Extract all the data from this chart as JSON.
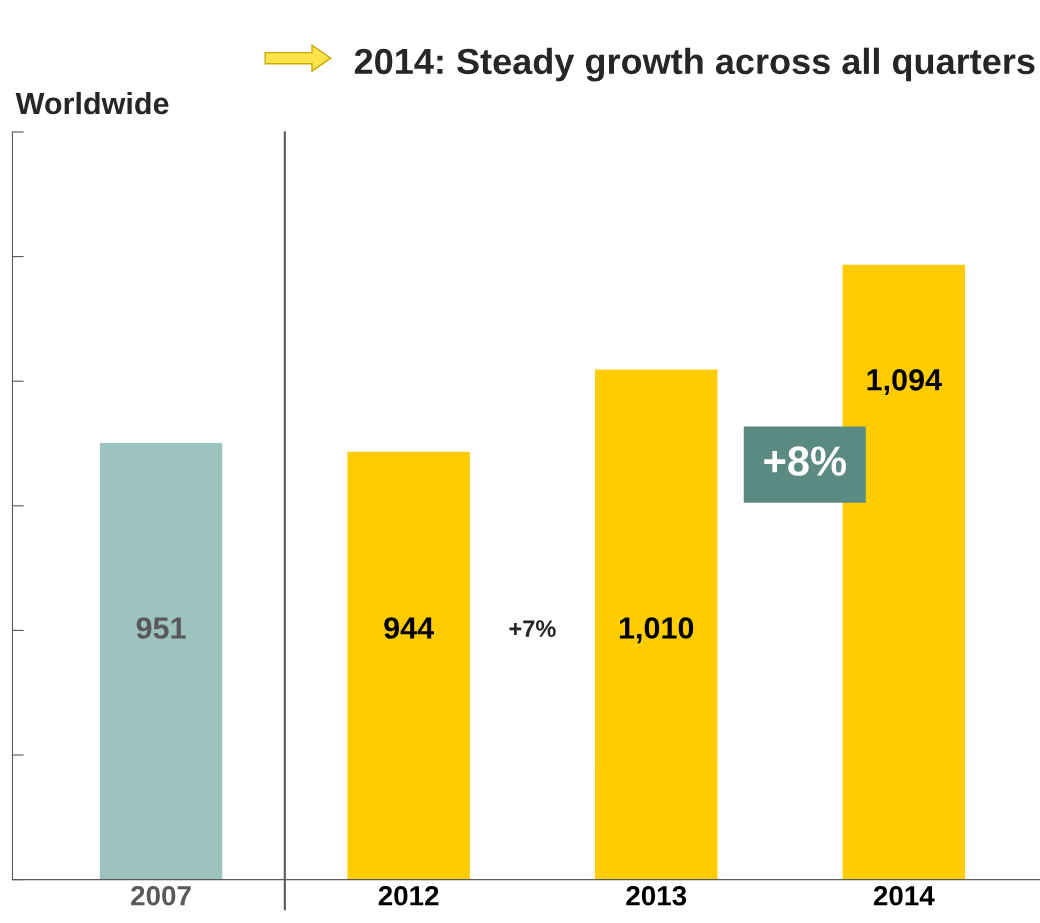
{
  "chart_data": {
    "type": "bar",
    "title": "2014: Steady growth across all quarters",
    "ylabel": "Worldwide",
    "categories": [
      "2007",
      "2012",
      "2013",
      "2014"
    ],
    "values": [
      951,
      944,
      1010,
      1094
    ],
    "colors": [
      "#9dc3be",
      "#ffcc00",
      "#ffcc00",
      "#ffcc00"
    ],
    "value_labels": [
      "951",
      "944",
      "1,010",
      "1,094"
    ],
    "ylim": [
      600,
      1200
    ],
    "yticks": [
      {
        "value": 600,
        "label": null
      },
      {
        "value": 700,
        "label": null
      },
      {
        "value": 800,
        "label": null
      },
      {
        "value": 900,
        "label": null
      },
      {
        "value": 1000,
        "label": null
      },
      {
        "value": 1100,
        "label": null
      },
      {
        "value": 1200,
        "label": null
      }
    ],
    "annotations": [
      "+7%",
      "+8%"
    ],
    "grid": false,
    "legend": false
  }
}
